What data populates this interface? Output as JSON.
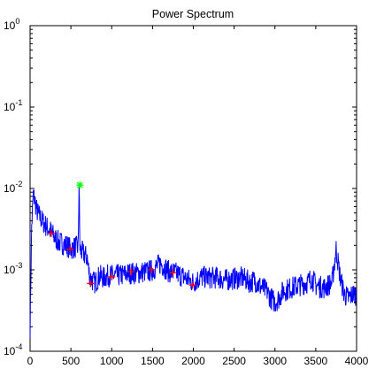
{
  "chart_data": {
    "type": "line",
    "title": "Power Spectrum",
    "xlabel": "",
    "ylabel": "",
    "xlim": [
      0,
      4000
    ],
    "ylim": [
      0.0001,
      1
    ],
    "yscale": "log",
    "grid": false,
    "x_ticks": [
      0,
      500,
      1000,
      1500,
      2000,
      2500,
      3000,
      3500,
      4000
    ],
    "x_tick_labels": [
      "0",
      "500",
      "1000",
      "1500",
      "2000",
      "2500",
      "3000",
      "3500",
      "4000"
    ],
    "y_ticks": [
      0.0001,
      0.001,
      0.01,
      0.1,
      1
    ],
    "y_tick_labels": [
      {
        "base": "10",
        "exp": "-4"
      },
      {
        "base": "10",
        "exp": "-3"
      },
      {
        "base": "10",
        "exp": "-2"
      },
      {
        "base": "10",
        "exp": "-1"
      },
      {
        "base": "10",
        "exp": "0"
      }
    ],
    "series": [
      {
        "color": "#0000ff",
        "x": [
          0,
          20,
          40,
          60,
          80,
          100,
          150,
          200,
          250,
          300,
          350,
          400,
          450,
          500,
          550,
          590,
          600,
          610,
          620,
          650,
          700,
          720,
          740,
          760,
          780,
          800,
          850,
          900,
          950,
          1000,
          1100,
          1200,
          1250,
          1300,
          1400,
          1450,
          1500,
          1550,
          1600,
          1700,
          1800,
          1900,
          2000,
          2100,
          2200,
          2300,
          2400,
          2500,
          2600,
          2700,
          2750,
          2800,
          2900,
          2950,
          3000,
          3050,
          3100,
          3200,
          3300,
          3400,
          3450,
          3500,
          3600,
          3700,
          3750,
          3800,
          3850,
          3900,
          3950,
          4000
        ],
        "y": [
          0.0002,
          0.0035,
          0.0085,
          0.007,
          0.0055,
          0.0048,
          0.004,
          0.0034,
          0.003,
          0.0025,
          0.0022,
          0.0021,
          0.002,
          0.0018,
          0.0019,
          0.0019,
          0.011,
          0.0019,
          0.0017,
          0.0016,
          0.0014,
          0.00095,
          0.0008,
          0.00075,
          0.0007,
          0.0007,
          0.00085,
          0.0008,
          0.00085,
          0.00085,
          0.00085,
          0.0009,
          0.00092,
          0.0009,
          0.00095,
          0.00095,
          0.001,
          0.0011,
          0.0012,
          0.00095,
          0.0009,
          0.0008,
          0.0007,
          0.00082,
          0.0008,
          0.0008,
          0.00075,
          0.00078,
          0.0008,
          0.0007,
          0.00075,
          0.00065,
          0.00055,
          0.00045,
          0.0004,
          0.00045,
          0.00055,
          0.0006,
          0.00065,
          0.0007,
          0.0008,
          0.00065,
          0.0006,
          0.0007,
          0.0018,
          0.0008,
          0.0005,
          0.00045,
          0.0005,
          0.0005
        ]
      }
    ],
    "markers": [
      {
        "x": 260,
        "y": 0.0028,
        "symbol": "+",
        "color": "#ff0000"
      },
      {
        "x": 490,
        "y": 0.0018,
        "symbol": "+",
        "color": "#ff0000"
      },
      {
        "x": 610,
        "y": 0.011,
        "symbol": "*",
        "color": "#00ff00"
      },
      {
        "x": 740,
        "y": 0.00068,
        "symbol": "+",
        "color": "#ff0000"
      },
      {
        "x": 1000,
        "y": 0.00082,
        "symbol": "+",
        "color": "#ff0000"
      },
      {
        "x": 1240,
        "y": 0.00095,
        "symbol": "+",
        "color": "#ff0000"
      },
      {
        "x": 1490,
        "y": 0.001,
        "symbol": "+",
        "color": "#ff0000"
      },
      {
        "x": 1750,
        "y": 0.00092,
        "symbol": "+",
        "color": "#ff0000"
      },
      {
        "x": 1990,
        "y": 0.00065,
        "symbol": "+",
        "color": "#ff0000"
      }
    ]
  }
}
